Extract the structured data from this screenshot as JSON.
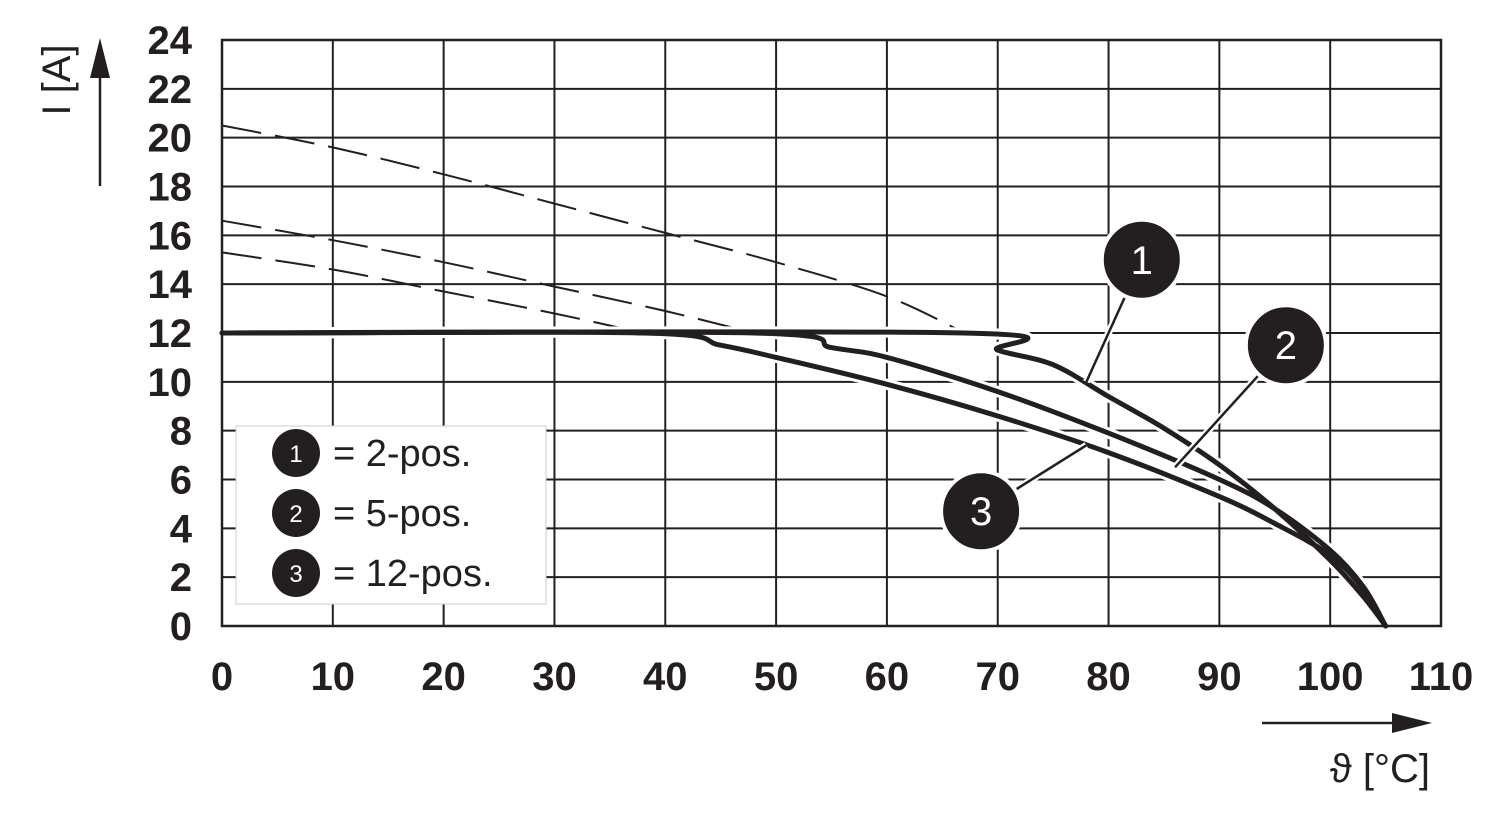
{
  "chart_data": {
    "type": "line",
    "xlabel": "ϑ [°C]",
    "ylabel": "I [A]",
    "xlim": [
      0,
      110
    ],
    "ylim": [
      0,
      24
    ],
    "xticks": [
      "0",
      "10",
      "20",
      "30",
      "40",
      "50",
      "60",
      "70",
      "80",
      "90",
      "100",
      "110"
    ],
    "yticks": [
      "0",
      "2",
      "4",
      "6",
      "8",
      "10",
      "12",
      "14",
      "16",
      "18",
      "20",
      "22",
      "24"
    ],
    "grid": true,
    "legend_position": "bottom-left",
    "legend": [
      {
        "marker": "1",
        "label": "= 2-pos."
      },
      {
        "marker": "2",
        "label": "= 5-pos."
      },
      {
        "marker": "3",
        "label": "= 12-pos."
      }
    ],
    "series": [
      {
        "marker": "1",
        "curve": {
          "x": [
            0,
            67,
            70,
            75,
            80,
            85,
            90,
            95,
            100,
            103,
            105
          ],
          "y": [
            12,
            12,
            11.3,
            10.7,
            9.4,
            8.1,
            6.6,
            4.8,
            2.7,
            1.2,
            0
          ]
        },
        "dashed": {
          "x": [
            0,
            10,
            20,
            30,
            40,
            50,
            60,
            67
          ],
          "y": [
            20.5,
            19.6,
            18.5,
            17.3,
            16.1,
            14.9,
            13.5,
            12
          ]
        }
      },
      {
        "marker": "2",
        "curve": {
          "x": [
            0,
            48,
            55,
            60,
            70,
            80,
            90,
            95,
            100,
            103,
            105
          ],
          "y": [
            12,
            12,
            11.4,
            11,
            9.6,
            7.9,
            6,
            4.8,
            3.1,
            1.6,
            0
          ]
        },
        "dashed": {
          "x": [
            0,
            10,
            20,
            30,
            40,
            48
          ],
          "y": [
            16.6,
            15.8,
            14.9,
            13.9,
            12.9,
            12
          ]
        }
      },
      {
        "marker": "3",
        "curve": {
          "x": [
            0,
            38,
            45,
            50,
            60,
            70,
            80,
            90,
            95,
            100,
            103,
            105
          ],
          "y": [
            12,
            12,
            11.5,
            11,
            9.9,
            8.6,
            7.1,
            5.3,
            4.2,
            2.9,
            1.5,
            0
          ]
        },
        "dashed": {
          "x": [
            0,
            10,
            20,
            30,
            38
          ],
          "y": [
            15.3,
            14.6,
            13.7,
            12.8,
            12
          ]
        }
      }
    ],
    "callouts": [
      {
        "marker": "1",
        "at": {
          "x": 78,
          "y": 10
        },
        "label_at": {
          "x": 83,
          "y": 15
        }
      },
      {
        "marker": "2",
        "at": {
          "x": 86,
          "y": 6.5
        },
        "label_at": {
          "x": 96,
          "y": 11.5
        }
      },
      {
        "marker": "3",
        "at": {
          "x": 78,
          "y": 7.4
        },
        "label_at": {
          "x": 68.5,
          "y": 4.7
        }
      }
    ],
    "colors": {
      "ink": "#231f20",
      "background": "#ffffff"
    }
  }
}
